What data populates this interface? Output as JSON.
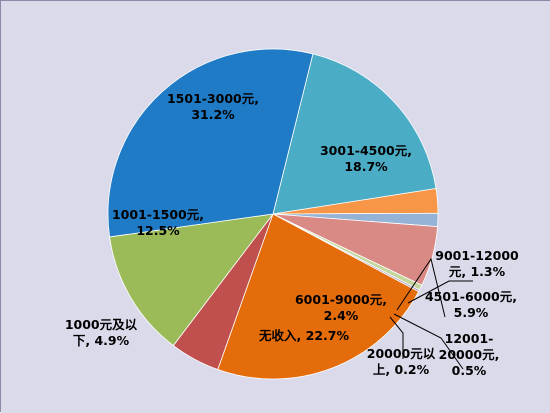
{
  "chart_data": {
    "type": "pie",
    "slices": [
      {
        "category": "3001-4500元",
        "percent_label": "18.7%",
        "value": 18.7,
        "color": "#4BACC6"
      },
      {
        "category": "6001-9000元",
        "percent_label": "2.4%",
        "value": 2.4,
        "color": "#F79646"
      },
      {
        "category": "9001-12000元",
        "percent_label": "1.3%",
        "value": 1.3,
        "color": "#95B3D7"
      },
      {
        "category": "4501-6000元",
        "percent_label": "5.9%",
        "value": 5.9,
        "color": "#DA8A85"
      },
      {
        "category": "12001-20000元",
        "percent_label": "0.5%",
        "value": 0.5,
        "color": "#C3D69B"
      },
      {
        "category": "20000元以上",
        "percent_label": "0.2%",
        "value": 0.2,
        "color": "#B3A2C7"
      },
      {
        "category": "无收入",
        "percent_label": "22.7%",
        "value": 22.7,
        "color": "#E46C0A"
      },
      {
        "category": "1000元及以下",
        "percent_label": "4.9%",
        "value": 4.9,
        "color": "#C0504D"
      },
      {
        "category": "1001-1500元",
        "percent_label": "12.5%",
        "value": 12.5,
        "color": "#9BBB59"
      },
      {
        "category": "1501-3000元",
        "percent_label": "31.2%",
        "value": 31.2,
        "color": "#1F7BC6"
      }
    ],
    "label_lines": [
      [
        "3001-4500元,",
        "18.7%"
      ],
      [
        "6001-9000元,",
        "2.4%"
      ],
      [
        "9001-12000",
        "元, 1.3%"
      ],
      [
        "4501-6000元,",
        "5.9%"
      ],
      [
        "12001-",
        "20000元,",
        "0.5%"
      ],
      [
        "20000元以",
        "上, 0.2%"
      ],
      [
        "无收入, 22.7%"
      ],
      [
        "1000元及以",
        "下, 4.9%"
      ],
      [
        "1001-1500元,",
        "12.5%"
      ],
      [
        "1501-3000元,",
        "31.2%"
      ]
    ],
    "colors": {
      "background": "#DADAEB",
      "border": "#8A8AA6",
      "leader_line": "#000000"
    }
  }
}
